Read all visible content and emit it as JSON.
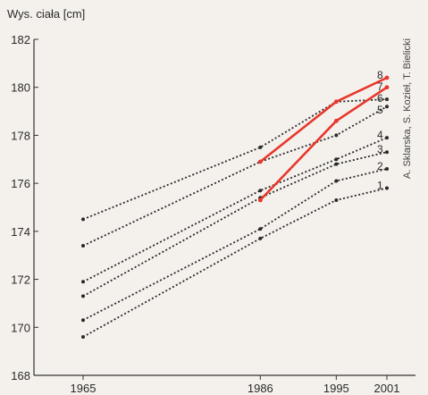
{
  "chart_data": {
    "type": "line",
    "ylabel": "Wys. ciała [cm]",
    "credit": "A. Sklarska, S. Kozieł, T. Bielicki",
    "xlabel": "",
    "title": "",
    "x_ticks": [
      1965,
      1986,
      1995,
      2001
    ],
    "y_ticks": [
      168,
      170,
      172,
      174,
      176,
      178,
      180,
      182
    ],
    "xlim": [
      1965,
      2001
    ],
    "ylim": [
      168,
      182
    ],
    "colors": {
      "dotted": "#2a2a2a",
      "highlight": "#e8372c",
      "axis": "#333333"
    },
    "series": [
      {
        "name": "1",
        "style": "dotted",
        "points": [
          [
            1965,
            169.6
          ],
          [
            1986,
            173.7
          ],
          [
            1995,
            175.3
          ],
          [
            2001,
            175.8
          ]
        ]
      },
      {
        "name": "2",
        "style": "dotted",
        "points": [
          [
            1965,
            170.3
          ],
          [
            1986,
            174.1
          ],
          [
            1995,
            176.1
          ],
          [
            2001,
            176.6
          ]
        ]
      },
      {
        "name": "3",
        "style": "dotted",
        "points": [
          [
            1965,
            171.3
          ],
          [
            1986,
            175.4
          ],
          [
            1995,
            176.8
          ],
          [
            2001,
            177.3
          ]
        ]
      },
      {
        "name": "4",
        "style": "dotted",
        "points": [
          [
            1965,
            171.9
          ],
          [
            1986,
            175.7
          ],
          [
            1995,
            177.0
          ],
          [
            2001,
            177.9
          ]
        ]
      },
      {
        "name": "5",
        "style": "dotted",
        "points": [
          [
            1965,
            173.4
          ],
          [
            1986,
            176.9
          ],
          [
            1995,
            178.0
          ],
          [
            2001,
            179.2
          ]
        ]
      },
      {
        "name": "6",
        "style": "dotted",
        "points": [
          [
            1965,
            174.5
          ],
          [
            1986,
            177.5
          ],
          [
            1995,
            179.4
          ],
          [
            2001,
            179.5
          ]
        ]
      },
      {
        "name": "7",
        "style": "solid",
        "points": [
          [
            1986,
            175.3
          ],
          [
            1995,
            178.6
          ],
          [
            2001,
            180.0
          ]
        ]
      },
      {
        "name": "8",
        "style": "solid",
        "points": [
          [
            1986,
            176.9
          ],
          [
            1995,
            179.4
          ],
          [
            2001,
            180.4
          ]
        ]
      }
    ]
  }
}
